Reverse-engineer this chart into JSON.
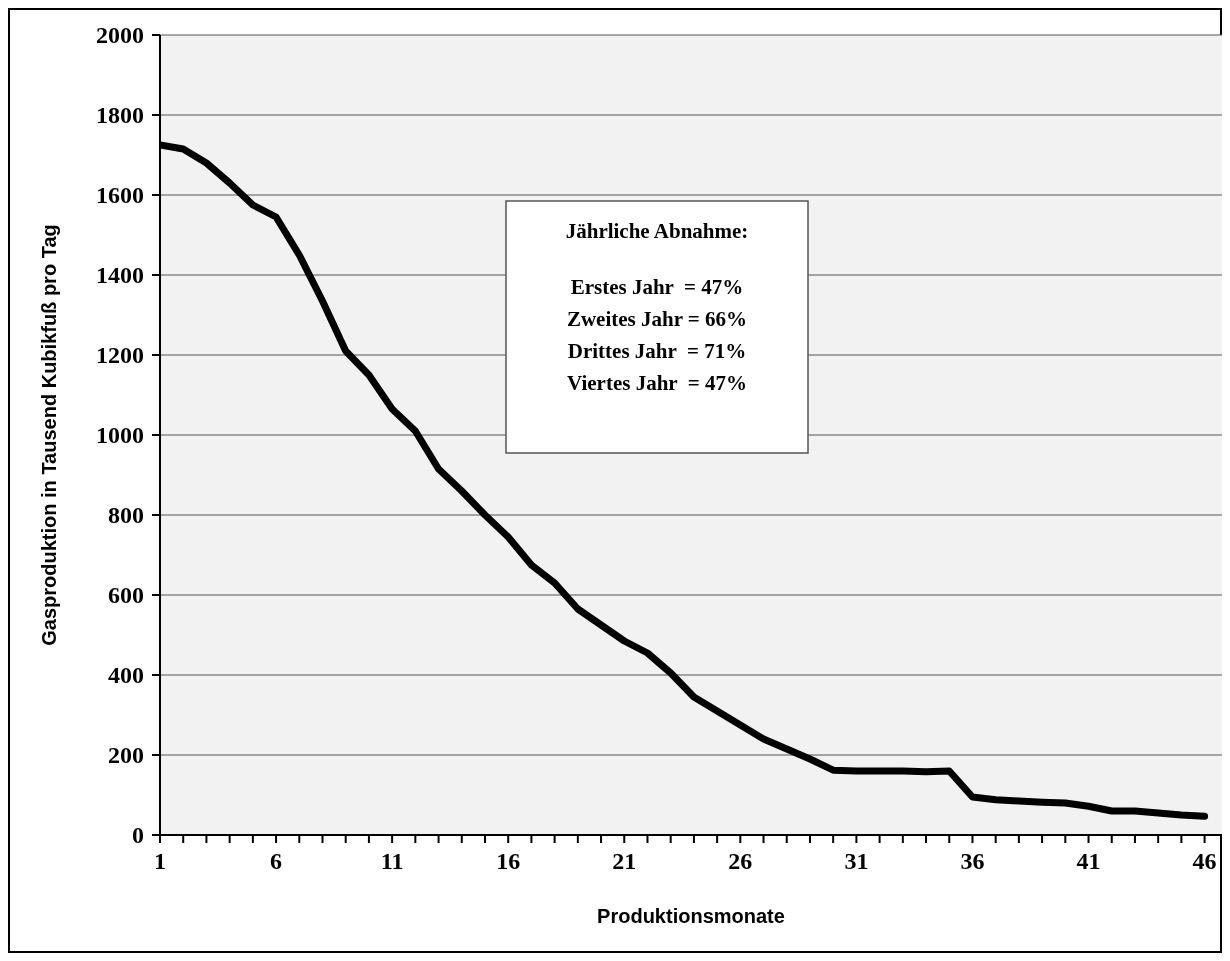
{
  "chart_data": {
    "type": "line",
    "xlabel": "Produktionsmonate",
    "ylabel": "Gasproduktion in Tausend Kubikfuß pro Tag",
    "x": [
      1,
      2,
      3,
      4,
      5,
      6,
      7,
      8,
      9,
      10,
      11,
      12,
      13,
      14,
      15,
      16,
      17,
      18,
      19,
      20,
      21,
      22,
      23,
      24,
      25,
      26,
      27,
      28,
      29,
      30,
      31,
      32,
      33,
      34,
      35,
      36,
      37,
      38,
      39,
      40,
      41,
      42,
      43,
      44,
      45,
      46
    ],
    "series": [
      {
        "color": "#000000",
        "values": [
          1725,
          1715,
          1680,
          1630,
          1575,
          1545,
          1450,
          1335,
          1210,
          1150,
          1065,
          1010,
          915,
          860,
          800,
          745,
          675,
          630,
          565,
          525,
          485,
          455,
          405,
          345,
          310,
          275,
          240,
          215,
          190,
          162,
          160,
          160,
          160,
          158,
          160,
          95,
          88,
          85,
          82,
          80,
          72,
          60,
          60,
          55,
          50,
          47
        ]
      }
    ],
    "xlim": [
      1,
      46.75
    ],
    "xticks": [
      1,
      {
        "value": 2,
        "label": null
      },
      {
        "value": 3,
        "label": null
      },
      {
        "value": 4,
        "label": null
      },
      {
        "value": 5,
        "label": null
      },
      6,
      {
        "value": 7,
        "label": null
      },
      {
        "value": 8,
        "label": null
      },
      {
        "value": 9,
        "label": null
      },
      {
        "value": 10,
        "label": null
      },
      11,
      {
        "value": 12,
        "label": null
      },
      {
        "value": 13,
        "label": null
      },
      {
        "value": 14,
        "label": null
      },
      {
        "value": 15,
        "label": null
      },
      16,
      {
        "value": 17,
        "label": null
      },
      {
        "value": 18,
        "label": null
      },
      {
        "value": 19,
        "label": null
      },
      {
        "value": 20,
        "label": null
      },
      21,
      {
        "value": 22,
        "label": null
      },
      {
        "value": 23,
        "label": null
      },
      {
        "value": 24,
        "label": null
      },
      {
        "value": 25,
        "label": null
      },
      26,
      {
        "value": 27,
        "label": null
      },
      {
        "value": 28,
        "label": null
      },
      {
        "value": 29,
        "label": null
      },
      {
        "value": 30,
        "label": null
      },
      31,
      {
        "value": 32,
        "label": null
      },
      {
        "value": 33,
        "label": null
      },
      {
        "value": 34,
        "label": null
      },
      {
        "value": 35,
        "label": null
      },
      36,
      {
        "value": 37,
        "label": null
      },
      {
        "value": 38,
        "label": null
      },
      {
        "value": 39,
        "label": null
      },
      {
        "value": 40,
        "label": null
      },
      41,
      {
        "value": 42,
        "label": null
      },
      {
        "value": 43,
        "label": null
      },
      {
        "value": 44,
        "label": null
      },
      {
        "value": 45,
        "label": null
      },
      46
    ],
    "ylim": [
      0,
      2000
    ],
    "yticks": [
      0,
      200,
      400,
      600,
      800,
      1000,
      1200,
      1400,
      1600,
      1800,
      2000
    ],
    "grid": "y",
    "marker": "none",
    "line_style": "solid",
    "annotations": [
      "Jährliche Abnahme:",
      "Erstes Jahr  = 47%",
      "Zweites Jahr = 66%",
      "Drittes Jahr  = 71%",
      "Viertes Jahr  = 47%"
    ]
  }
}
